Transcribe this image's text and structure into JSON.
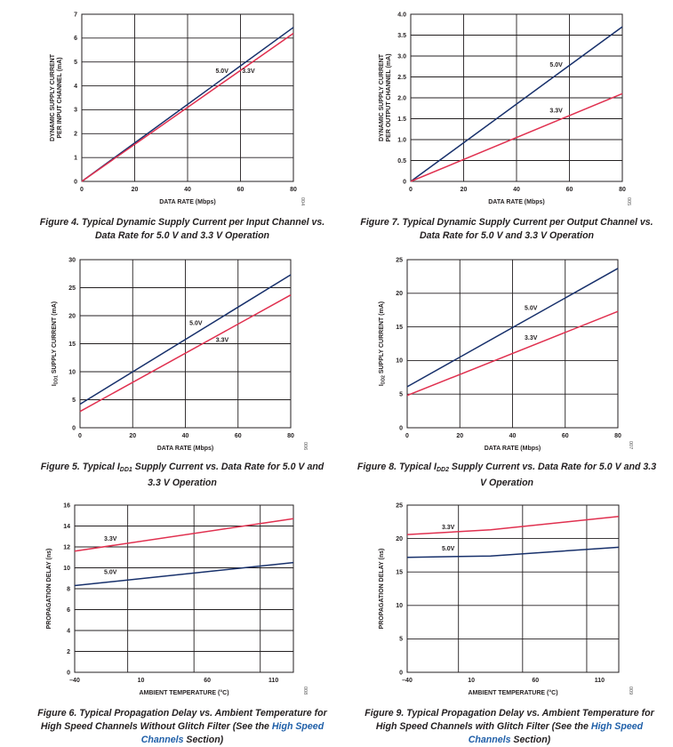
{
  "colors": {
    "line_5v": "#17306b",
    "line_3v": "#e0304f",
    "grid": "#231f20",
    "link": "#1f5fa8"
  },
  "figures": {
    "fig4": {
      "caption": "Figure 4. Typical Dynamic Supply Current per Input Channel vs. Data Rate for 5.0 V and 3.3 V Operation",
      "code": "004"
    },
    "fig7": {
      "caption": "Figure 7. Typical Dynamic Supply Current per Output Channel vs. Data Rate for 5.0 V and 3.3 V Operation",
      "code": "005"
    },
    "fig5": {
      "caption_pre": "Figure 5. Typical I",
      "caption_sub": "DD1",
      "caption_post": " Supply Current vs. Data Rate for 5.0 V and 3.3 V Operation",
      "code": "006"
    },
    "fig8": {
      "caption_pre": "Figure 8. Typical I",
      "caption_sub": "DD2",
      "caption_post": " Supply Current vs. Data Rate for 5.0 V and 3.3 V Operation",
      "code": "007"
    },
    "fig6": {
      "caption_pre": "Figure 6. Typical Propagation Delay vs. Ambient Temperature for High Speed Channels Without Glitch Filter (See the ",
      "caption_link": "High Speed Channels",
      "caption_post": " Section)",
      "code": "008"
    },
    "fig9": {
      "caption_pre": "Figure 9. Typical Propagation Delay vs. Ambient Temperature for High Speed Channels with Glitch Filter (See the ",
      "caption_link": "High Speed Channels",
      "caption_post": " Section)",
      "code": "009"
    }
  },
  "chart_data": [
    {
      "id": "fig4",
      "type": "line",
      "xlabel": "DATA RATE (Mbps)",
      "ylabel": [
        "DYNAMIC SUPPLY CURRENT",
        "PER INPUT CHANNEL (mA)"
      ],
      "xlim": [
        0,
        80
      ],
      "ylim": [
        0,
        7
      ],
      "xticks": [
        0,
        20,
        40,
        60,
        80
      ],
      "yticks": [
        0,
        1,
        2,
        3,
        4,
        5,
        6,
        7
      ],
      "xtick_labels": [
        "0",
        "20",
        "40",
        "60",
        "80"
      ],
      "ytick_labels": [
        "0",
        "1",
        "2",
        "3",
        "4",
        "5",
        "6",
        "7"
      ],
      "grid": true,
      "series": [
        {
          "name": "5.0V",
          "color": "#17306b",
          "x": [
            0,
            80
          ],
          "y": [
            0,
            6.45
          ]
        },
        {
          "name": "3.3V",
          "color": "#e0304f",
          "x": [
            0,
            80
          ],
          "y": [
            0,
            6.2
          ]
        }
      ],
      "annotations": [
        {
          "text": "5.0V",
          "x": 53,
          "y": 4.55
        },
        {
          "text": "3.3V",
          "x": 63,
          "y": 4.55
        }
      ]
    },
    {
      "id": "fig7",
      "type": "line",
      "xlabel": "DATA RATE (Mbps)",
      "ylabel": [
        "DYNAMIC SUPPLY CURRENT",
        "PER OUTPUT CHANNEL (mA)"
      ],
      "xlim": [
        0,
        80
      ],
      "ylim": [
        0,
        4
      ],
      "xticks": [
        0,
        20,
        40,
        60,
        80
      ],
      "yticks": [
        0,
        0.5,
        1,
        1.5,
        2,
        2.5,
        3,
        3.5,
        4
      ],
      "xtick_labels": [
        "0",
        "20",
        "40",
        "60",
        "80"
      ],
      "ytick_labels": [
        "0",
        "0.5",
        "1.0",
        "1.5",
        "2.0",
        "2.5",
        "3.0",
        "3.5",
        "4.0"
      ],
      "grid": true,
      "series": [
        {
          "name": "5.0V",
          "color": "#17306b",
          "x": [
            0,
            80
          ],
          "y": [
            0,
            3.7
          ]
        },
        {
          "name": "3.3V",
          "color": "#e0304f",
          "x": [
            0,
            80
          ],
          "y": [
            0,
            2.1
          ]
        }
      ],
      "annotations": [
        {
          "text": "5.0V",
          "x": 55,
          "y": 2.75
        },
        {
          "text": "3.3V",
          "x": 55,
          "y": 1.65
        }
      ]
    },
    {
      "id": "fig5",
      "type": "line",
      "xlabel": "DATA RATE (Mbps)",
      "ylabel": [
        "SUPPLY CURRENT (mA)"
      ],
      "ylabel_prefix": "I",
      "ylabel_sub": "DD1",
      "xlim": [
        0,
        80
      ],
      "ylim": [
        0,
        30
      ],
      "xticks": [
        0,
        20,
        40,
        60,
        80
      ],
      "yticks": [
        0,
        5,
        10,
        15,
        20,
        25,
        30
      ],
      "xtick_labels": [
        "0",
        "20",
        "40",
        "60",
        "80"
      ],
      "ytick_labels": [
        "0",
        "5",
        "10",
        "15",
        "20",
        "25",
        "30"
      ],
      "grid": true,
      "series": [
        {
          "name": "5.0V",
          "color": "#17306b",
          "x": [
            0,
            80
          ],
          "y": [
            4.2,
            27.3
          ]
        },
        {
          "name": "3.3V",
          "color": "#e0304f",
          "x": [
            0,
            80
          ],
          "y": [
            2.9,
            23.7
          ]
        }
      ],
      "annotations": [
        {
          "text": "5.0V",
          "x": 44,
          "y": 18.3
        },
        {
          "text": "3.3V",
          "x": 54,
          "y": 15.3
        }
      ]
    },
    {
      "id": "fig8",
      "type": "line",
      "xlabel": "DATA RATE (Mbps)",
      "ylabel": [
        "SUPPLY CURRENT (mA)"
      ],
      "ylabel_prefix": "I",
      "ylabel_sub": "DD2",
      "xlim": [
        0,
        80
      ],
      "ylim": [
        0,
        25
      ],
      "xticks": [
        0,
        20,
        40,
        60,
        80
      ],
      "yticks": [
        0,
        5,
        10,
        15,
        20,
        25
      ],
      "xtick_labels": [
        "0",
        "20",
        "40",
        "60",
        "80"
      ],
      "ytick_labels": [
        "0",
        "5",
        "10",
        "15",
        "20",
        "25"
      ],
      "grid": true,
      "series": [
        {
          "name": "5.0V",
          "color": "#17306b",
          "x": [
            0,
            80
          ],
          "y": [
            6.1,
            23.7
          ]
        },
        {
          "name": "3.3V",
          "color": "#e0304f",
          "x": [
            0,
            80
          ],
          "y": [
            4.8,
            17.3
          ]
        }
      ],
      "annotations": [
        {
          "text": "5.0V",
          "x": 47,
          "y": 17.5
        },
        {
          "text": "3.3V",
          "x": 47,
          "y": 13.1
        }
      ]
    },
    {
      "id": "fig6",
      "type": "line",
      "xlabel": "AMBIENT TEMPERATURE (°C)",
      "ylabel": [
        "PROPAGATION DELAY (ns)"
      ],
      "xlim": [
        -40,
        125
      ],
      "ylim": [
        0,
        16
      ],
      "xticks": [
        -40,
        10,
        60,
        110
      ],
      "yticks": [
        0,
        2,
        4,
        6,
        8,
        10,
        12,
        14,
        16
      ],
      "xgrid": [
        -40,
        0,
        50,
        100,
        125
      ],
      "xtick_labels": [
        "–40",
        "10",
        "60",
        "110"
      ],
      "ytick_labels": [
        "0",
        "2",
        "4",
        "6",
        "8",
        "10",
        "12",
        "14",
        "16"
      ],
      "grid": true,
      "series": [
        {
          "name": "3.3V",
          "color": "#e0304f",
          "x": [
            -40,
            125
          ],
          "y": [
            11.6,
            14.7
          ]
        },
        {
          "name": "5.0V",
          "color": "#17306b",
          "x": [
            -40,
            125
          ],
          "y": [
            8.3,
            10.5
          ]
        }
      ],
      "annotations": [
        {
          "text": "3.3V",
          "x": -13,
          "y": 12.6
        },
        {
          "text": "5.0V",
          "x": -13,
          "y": 9.4
        }
      ]
    },
    {
      "id": "fig9",
      "type": "line",
      "xlabel": "AMBIENT TEMPERATURE (°C)",
      "ylabel": [
        "PROPAGATION DELAY (ns)"
      ],
      "xlim": [
        -40,
        125
      ],
      "ylim": [
        0,
        25
      ],
      "xticks": [
        -40,
        10,
        60,
        110
      ],
      "yticks": [
        0,
        5,
        10,
        15,
        20,
        25
      ],
      "xgrid": [
        -40,
        0,
        50,
        100,
        125
      ],
      "xtick_labels": [
        "–40",
        "10",
        "60",
        "110"
      ],
      "ytick_labels": [
        "0",
        "5",
        "10",
        "15",
        "20",
        "25"
      ],
      "grid": true,
      "series": [
        {
          "name": "3.3V",
          "color": "#e0304f",
          "x": [
            -40,
            25,
            125
          ],
          "y": [
            20.6,
            21.3,
            23.3
          ]
        },
        {
          "name": "5.0V",
          "color": "#17306b",
          "x": [
            -40,
            25,
            125
          ],
          "y": [
            17.2,
            17.4,
            18.7
          ]
        }
      ],
      "annotations": [
        {
          "text": "3.3V",
          "x": -8,
          "y": 21.4
        },
        {
          "text": "5.0V",
          "x": -8,
          "y": 18.2
        }
      ]
    }
  ]
}
